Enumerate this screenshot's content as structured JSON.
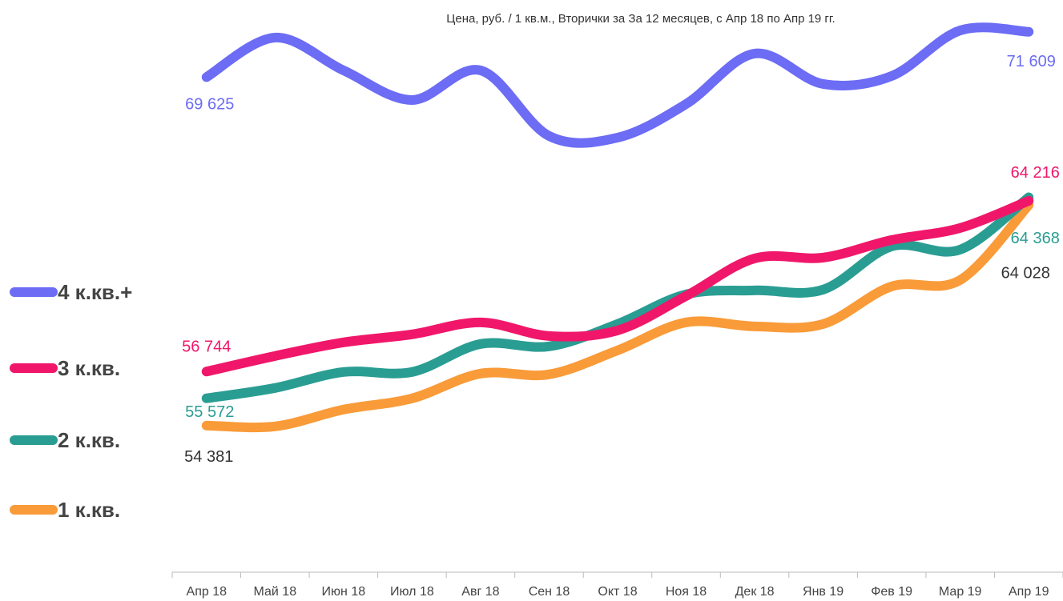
{
  "chart_data": {
    "type": "line",
    "title": "Цена, руб. / 1 кв.м., Вторички за За 12 месяцев, с Апр 18 по Апр 19 гг.",
    "categories": [
      "Апр 18",
      "Май 18",
      "Июн 18",
      "Июл 18",
      "Авг 18",
      "Сен 18",
      "Окт 18",
      "Ноя 18",
      "Дек 18",
      "Янв 19",
      "Фев 19",
      "Мар 19",
      "Апр 19"
    ],
    "ylim": [
      48000,
      73000
    ],
    "series": [
      {
        "name": "4 к.кв.+",
        "color": "#6c6cf5",
        "values": [
          69625,
          71355,
          69920,
          68625,
          69920,
          67050,
          66980,
          68450,
          70655,
          69325,
          69675,
          71670,
          71609
        ],
        "value_labels": [
          "69 625",
          null,
          null,
          null,
          null,
          null,
          null,
          null,
          null,
          null,
          null,
          null,
          "71 609"
        ]
      },
      {
        "name": "3 к.кв.",
        "color": "#f0176a",
        "values": [
          56744,
          57425,
          58020,
          58370,
          58895,
          58300,
          58545,
          60050,
          61695,
          61730,
          62500,
          63025,
          64216
        ],
        "value_labels": [
          "56 744",
          null,
          null,
          null,
          null,
          null,
          null,
          null,
          null,
          null,
          null,
          null,
          "64 216"
        ]
      },
      {
        "name": "2 к.кв.",
        "color": "#2a9d93",
        "values": [
          55572,
          56025,
          56725,
          56725,
          57950,
          57845,
          58825,
          60120,
          60295,
          60330,
          62220,
          62080,
          64368
        ],
        "value_labels": [
          "55 572",
          null,
          null,
          null,
          null,
          null,
          null,
          null,
          null,
          null,
          null,
          null,
          "64 368"
        ]
      },
      {
        "name": "1 к.кв.",
        "color": "#f99b38",
        "values": [
          54381,
          54345,
          55080,
          55570,
          56655,
          56620,
          57670,
          58895,
          58720,
          58825,
          60470,
          60750,
          64028
        ],
        "value_labels": [
          "54 381",
          null,
          null,
          null,
          null,
          null,
          null,
          null,
          null,
          null,
          null,
          null,
          "64 028"
        ]
      }
    ]
  }
}
